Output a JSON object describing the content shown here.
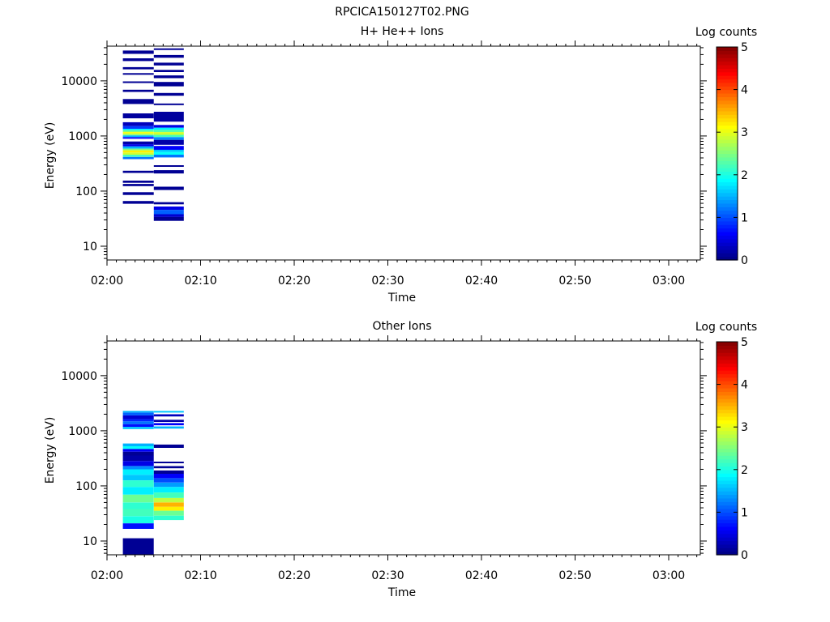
{
  "figure_title": "RPCICA150127T02.PNG",
  "chart_data": [
    {
      "type": "heatmap",
      "title": "H+ He++ Ions",
      "xlabel": "Time",
      "ylabel": "Energy (eV)",
      "x_ticks": [
        "02:00",
        "02:10",
        "02:20",
        "02:30",
        "02:40",
        "02:50",
        "03:00"
      ],
      "y_ticks": [
        "10",
        "100",
        "1000",
        "10000"
      ],
      "y_scale": "log",
      "x_range_minutes": [
        0,
        63.5
      ],
      "y_range_log10": [
        0.75,
        4.63
      ],
      "colorbar": {
        "label": "Log counts",
        "ticks": [
          "0",
          "1",
          "2",
          "3",
          "4",
          "5"
        ],
        "colormap": "jet",
        "range": [
          0,
          5
        ]
      },
      "columns": [
        {
          "time_start_min": 1.7,
          "time_end_min": 5.0,
          "cells": [
            {
              "log_e_low": 4.49,
              "log_e_high": 4.55,
              "value": 0.1
            },
            {
              "log_e_low": 4.36,
              "log_e_high": 4.41,
              "value": 0.1
            },
            {
              "log_e_low": 4.21,
              "log_e_high": 4.25,
              "value": 0.1
            },
            {
              "log_e_low": 4.11,
              "log_e_high": 4.14,
              "value": 0.1
            },
            {
              "log_e_low": 3.96,
              "log_e_high": 3.99,
              "value": 0.1
            },
            {
              "log_e_low": 3.8,
              "log_e_high": 3.84,
              "value": 0.1
            },
            {
              "log_e_low": 3.58,
              "log_e_high": 3.67,
              "value": 0.1
            },
            {
              "log_e_low": 3.32,
              "log_e_high": 3.41,
              "value": 0.15
            },
            {
              "log_e_low": 3.18,
              "log_e_high": 3.25,
              "value": 0.3
            },
            {
              "log_e_low": 3.13,
              "log_e_high": 3.18,
              "value": 0.9
            },
            {
              "log_e_low": 3.1,
              "log_e_high": 3.13,
              "value": 1.8
            },
            {
              "log_e_low": 3.07,
              "log_e_high": 3.1,
              "value": 2.5
            },
            {
              "log_e_low": 3.04,
              "log_e_high": 3.07,
              "value": 3.1
            },
            {
              "log_e_low": 3.01,
              "log_e_high": 3.04,
              "value": 2.6
            },
            {
              "log_e_low": 2.98,
              "log_e_high": 3.01,
              "value": 1.5
            },
            {
              "log_e_low": 2.95,
              "log_e_high": 2.98,
              "value": 0.6
            },
            {
              "log_e_low": 2.85,
              "log_e_high": 2.9,
              "value": 0.2
            },
            {
              "log_e_low": 2.81,
              "log_e_high": 2.85,
              "value": 0.5
            },
            {
              "log_e_low": 2.77,
              "log_e_high": 2.81,
              "value": 1.5
            },
            {
              "log_e_low": 2.74,
              "log_e_high": 2.77,
              "value": 2.5
            },
            {
              "log_e_low": 2.7,
              "log_e_high": 2.74,
              "value": 3.2
            },
            {
              "log_e_low": 2.66,
              "log_e_high": 2.7,
              "value": 2.9
            },
            {
              "log_e_low": 2.62,
              "log_e_high": 2.66,
              "value": 2.2
            },
            {
              "log_e_low": 2.58,
              "log_e_high": 2.62,
              "value": 1.2
            },
            {
              "log_e_low": 2.33,
              "log_e_high": 2.37,
              "value": 0.1
            },
            {
              "log_e_low": 2.15,
              "log_e_high": 2.19,
              "value": 0.1
            },
            {
              "log_e_low": 2.09,
              "log_e_high": 2.13,
              "value": 0.1
            },
            {
              "log_e_low": 1.93,
              "log_e_high": 1.98,
              "value": 0.1
            },
            {
              "log_e_low": 1.77,
              "log_e_high": 1.82,
              "value": 0.1
            }
          ]
        },
        {
          "time_start_min": 5.0,
          "time_end_min": 8.2,
          "cells": [
            {
              "log_e_low": 4.56,
              "log_e_high": 4.59,
              "value": 0.1
            },
            {
              "log_e_low": 4.42,
              "log_e_high": 4.47,
              "value": 0.1
            },
            {
              "log_e_low": 4.28,
              "log_e_high": 4.33,
              "value": 0.1
            },
            {
              "log_e_low": 4.16,
              "log_e_high": 4.2,
              "value": 0.1
            },
            {
              "log_e_low": 4.05,
              "log_e_high": 4.1,
              "value": 0.1
            },
            {
              "log_e_low": 3.9,
              "log_e_high": 3.98,
              "value": 0.1
            },
            {
              "log_e_low": 3.73,
              "log_e_high": 3.78,
              "value": 0.1
            },
            {
              "log_e_low": 3.56,
              "log_e_high": 3.59,
              "value": 0.1
            },
            {
              "log_e_low": 3.26,
              "log_e_high": 3.44,
              "value": 0.15
            },
            {
              "log_e_low": 3.15,
              "log_e_high": 3.2,
              "value": 0.5
            },
            {
              "log_e_low": 3.11,
              "log_e_high": 3.15,
              "value": 1.8
            },
            {
              "log_e_low": 3.07,
              "log_e_high": 3.11,
              "value": 2.3
            },
            {
              "log_e_low": 3.02,
              "log_e_high": 3.07,
              "value": 2.9
            },
            {
              "log_e_low": 2.98,
              "log_e_high": 3.02,
              "value": 2.2
            },
            {
              "log_e_low": 2.93,
              "log_e_high": 2.98,
              "value": 1.3
            },
            {
              "log_e_low": 2.84,
              "log_e_high": 2.93,
              "value": 0.2
            },
            {
              "log_e_low": 2.75,
              "log_e_high": 2.82,
              "value": 0.6
            },
            {
              "log_e_low": 2.71,
              "log_e_high": 2.75,
              "value": 1.6
            },
            {
              "log_e_low": 2.66,
              "log_e_high": 2.71,
              "value": 1.9
            },
            {
              "log_e_low": 2.61,
              "log_e_high": 2.66,
              "value": 1.2
            },
            {
              "log_e_low": 2.44,
              "log_e_high": 2.47,
              "value": 0.1
            },
            {
              "log_e_low": 2.32,
              "log_e_high": 2.38,
              "value": 0.1
            },
            {
              "log_e_low": 2.02,
              "log_e_high": 2.08,
              "value": 0.1
            },
            {
              "log_e_low": 1.76,
              "log_e_high": 1.8,
              "value": 0.1
            },
            {
              "log_e_low": 1.66,
              "log_e_high": 1.72,
              "value": 0.5
            },
            {
              "log_e_low": 1.58,
              "log_e_high": 1.66,
              "value": 1.1
            },
            {
              "log_e_low": 1.53,
              "log_e_high": 1.58,
              "value": 0.4
            },
            {
              "log_e_low": 1.46,
              "log_e_high": 1.53,
              "value": 0.1
            }
          ]
        }
      ]
    },
    {
      "type": "heatmap",
      "title": "Other Ions",
      "xlabel": "Time",
      "ylabel": "Energy (eV)",
      "x_ticks": [
        "02:00",
        "02:10",
        "02:20",
        "02:30",
        "02:40",
        "02:50",
        "03:00"
      ],
      "y_ticks": [
        "10",
        "100",
        "1000",
        "10000"
      ],
      "y_scale": "log",
      "x_range_minutes": [
        0,
        63.5
      ],
      "y_range_log10": [
        0.75,
        4.63
      ],
      "colorbar": {
        "label": "Log counts",
        "ticks": [
          "0",
          "1",
          "2",
          "3",
          "4",
          "5"
        ],
        "colormap": "jet",
        "range": [
          0,
          5
        ]
      },
      "columns": [
        {
          "time_start_min": 1.7,
          "time_end_min": 5.0,
          "cells": [
            {
              "log_e_low": 3.33,
              "log_e_high": 3.36,
              "value": 1.5
            },
            {
              "log_e_low": 3.28,
              "log_e_high": 3.33,
              "value": 1.1
            },
            {
              "log_e_low": 3.21,
              "log_e_high": 3.28,
              "value": 0.4
            },
            {
              "log_e_low": 3.17,
              "log_e_high": 3.21,
              "value": 0.8
            },
            {
              "log_e_low": 3.12,
              "log_e_high": 3.17,
              "value": 1.2
            },
            {
              "log_e_low": 3.07,
              "log_e_high": 3.12,
              "value": 0.7
            },
            {
              "log_e_low": 3.03,
              "log_e_high": 3.07,
              "value": 1.6
            },
            {
              "log_e_low": 2.72,
              "log_e_high": 2.77,
              "value": 1.5
            },
            {
              "log_e_low": 2.67,
              "log_e_high": 2.72,
              "value": 1.9
            },
            {
              "log_e_low": 2.62,
              "log_e_high": 2.67,
              "value": 0.6
            },
            {
              "log_e_low": 2.55,
              "log_e_high": 2.62,
              "value": 0.1
            },
            {
              "log_e_low": 2.45,
              "log_e_high": 2.55,
              "value": 0.2
            },
            {
              "log_e_low": 2.36,
              "log_e_high": 2.45,
              "value": 0.5
            },
            {
              "log_e_low": 2.3,
              "log_e_high": 2.36,
              "value": 1.3
            },
            {
              "log_e_low": 2.2,
              "log_e_high": 2.3,
              "value": 1.8
            },
            {
              "log_e_low": 2.1,
              "log_e_high": 2.2,
              "value": 1.6
            },
            {
              "log_e_low": 1.98,
              "log_e_high": 2.1,
              "value": 2.1
            },
            {
              "log_e_low": 1.84,
              "log_e_high": 1.98,
              "value": 1.8
            },
            {
              "log_e_low": 1.7,
              "log_e_high": 1.84,
              "value": 2.4
            },
            {
              "log_e_low": 1.58,
              "log_e_high": 1.7,
              "value": 2.1
            },
            {
              "log_e_low": 1.45,
              "log_e_high": 1.58,
              "value": 2.2
            },
            {
              "log_e_low": 1.32,
              "log_e_high": 1.45,
              "value": 2.0
            },
            {
              "log_e_low": 1.22,
              "log_e_high": 1.32,
              "value": 0.7
            },
            {
              "log_e_low": 0.75,
              "log_e_high": 1.05,
              "value": 0.1
            }
          ]
        },
        {
          "time_start_min": 5.0,
          "time_end_min": 8.2,
          "cells": [
            {
              "log_e_low": 3.33,
              "log_e_high": 3.36,
              "value": 1.6
            },
            {
              "log_e_low": 3.26,
              "log_e_high": 3.3,
              "value": 0.3
            },
            {
              "log_e_low": 3.16,
              "log_e_high": 3.2,
              "value": 0.2
            },
            {
              "log_e_low": 3.1,
              "log_e_high": 3.14,
              "value": 0.6
            },
            {
              "log_e_low": 3.04,
              "log_e_high": 3.08,
              "value": 1.5
            },
            {
              "log_e_low": 2.69,
              "log_e_high": 2.75,
              "value": 0.1
            },
            {
              "log_e_low": 2.41,
              "log_e_high": 2.44,
              "value": 0.1
            },
            {
              "log_e_low": 2.32,
              "log_e_high": 2.36,
              "value": 0.1
            },
            {
              "log_e_low": 2.22,
              "log_e_high": 2.28,
              "value": 0.1
            },
            {
              "log_e_low": 2.14,
              "log_e_high": 2.22,
              "value": 0.6
            },
            {
              "log_e_low": 2.06,
              "log_e_high": 2.14,
              "value": 1.0
            },
            {
              "log_e_low": 1.98,
              "log_e_high": 2.06,
              "value": 1.4
            },
            {
              "log_e_low": 1.88,
              "log_e_high": 1.98,
              "value": 1.8
            },
            {
              "log_e_low": 1.78,
              "log_e_high": 1.88,
              "value": 2.2
            },
            {
              "log_e_low": 1.7,
              "log_e_high": 1.78,
              "value": 2.8
            },
            {
              "log_e_low": 1.62,
              "log_e_high": 1.7,
              "value": 3.5
            },
            {
              "log_e_low": 1.55,
              "log_e_high": 1.62,
              "value": 3.2
            },
            {
              "log_e_low": 1.46,
              "log_e_high": 1.55,
              "value": 2.4
            },
            {
              "log_e_low": 1.38,
              "log_e_high": 1.46,
              "value": 2.1
            }
          ]
        }
      ]
    }
  ]
}
